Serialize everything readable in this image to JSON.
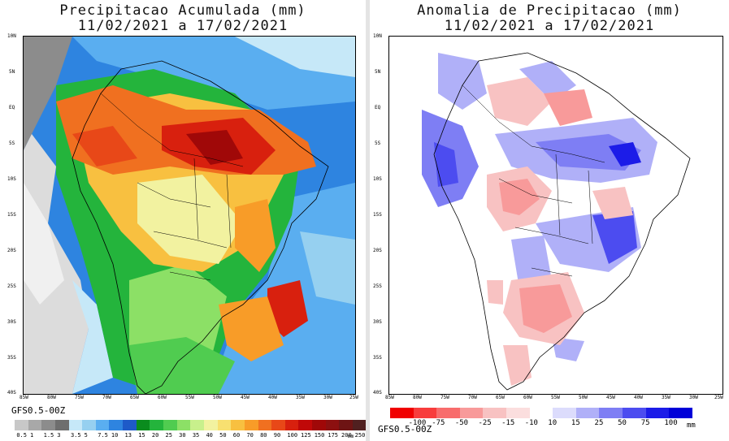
{
  "left": {
    "title_line1": "Precipitacao Acumulada (mm)",
    "title_line2": "11/02/2021 a 17/02/2021",
    "model": "GFS0.5-00Z",
    "unit": "mm",
    "colorbar": {
      "labels": [
        "0.5",
        "1",
        "1.5",
        "3",
        "3.5",
        "5",
        "7.5",
        "10",
        "13",
        "15",
        "20",
        "25",
        "30",
        "35",
        "40",
        "50",
        "60",
        "70",
        "80",
        "90",
        "100",
        "125",
        "150",
        "175",
        "200",
        "250"
      ],
      "colors": [
        "#c8c8c8",
        "#a8a8a8",
        "#8c8c8c",
        "#6e6e6e",
        "#c6e8f8",
        "#96d0f0",
        "#5aaef0",
        "#2e84e0",
        "#1e5ac8",
        "#0a8c1e",
        "#24b43c",
        "#50cc50",
        "#8ce066",
        "#c8f08c",
        "#f2f2a0",
        "#f8e070",
        "#f8c040",
        "#f89c28",
        "#f07020",
        "#e84818",
        "#d8200e",
        "#c00808",
        "#a00808",
        "#8c1010",
        "#6e1414",
        "#502020"
      ]
    }
  },
  "right": {
    "title_line1": "Anomalia de Precipitacao (mm)",
    "title_line2": "11/02/2021 a 17/02/2021",
    "model": "GFS0.5-00Z",
    "unit": "mm",
    "colorbar": {
      "labels": [
        "-100",
        "-75",
        "-50",
        "-25",
        "-15",
        "-10",
        "10",
        "15",
        "25",
        "50",
        "75",
        "100"
      ],
      "colors": [
        "#f00000",
        "#f83c3c",
        "#f86c6c",
        "#f89a9a",
        "#f8c2c2",
        "#fbdede",
        "#ffffff",
        "#dcdcfc",
        "#b0b0f8",
        "#7e7ef4",
        "#4c4cf0",
        "#1c1ce8",
        "#0000d8"
      ]
    }
  },
  "lat_ticks": [
    "10N",
    "5N",
    "EQ",
    "5S",
    "10S",
    "15S",
    "20S",
    "25S",
    "30S",
    "35S",
    "40S"
  ],
  "lon_ticks": [
    "85W",
    "80W",
    "75W",
    "70W",
    "65W",
    "60W",
    "55W",
    "50W",
    "45W",
    "40W",
    "35W",
    "30W",
    "25W"
  ],
  "colors": {
    "frame": "#000000",
    "background": "#ffffff"
  }
}
